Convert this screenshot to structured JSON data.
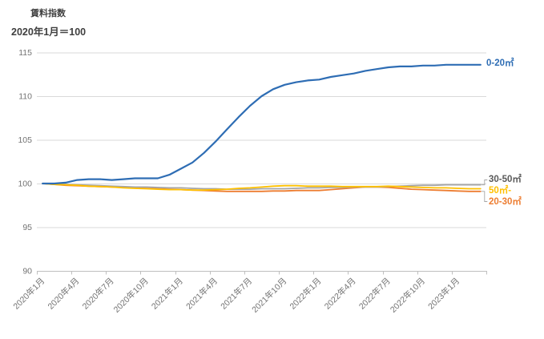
{
  "chart_data": {
    "type": "line",
    "title": "賃料指数",
    "subtitle": "2020年1月＝100",
    "ylim": [
      90,
      115
    ],
    "y_ticks": [
      90,
      95,
      100,
      105,
      110,
      115
    ],
    "grid": "horizontal-only",
    "legend_position": "end-of-line-labels",
    "x_tick_interval_months": 3,
    "x_tick_labels": [
      "2020年1月",
      "2020年4月",
      "2020年7月",
      "2020年10月",
      "2021年1月",
      "2021年4月",
      "2021年7月",
      "2021年10月",
      "2022年1月",
      "2022年4月",
      "2022年7月",
      "2022年10月",
      "2023年1月"
    ],
    "categories": [
      "2020年1月",
      "2020年2月",
      "2020年3月",
      "2020年4月",
      "2020年5月",
      "2020年6月",
      "2020年7月",
      "2020年8月",
      "2020年9月",
      "2020年10月",
      "2020年11月",
      "2020年12月",
      "2021年1月",
      "2021年2月",
      "2021年3月",
      "2021年4月",
      "2021年5月",
      "2021年6月",
      "2021年7月",
      "2021年8月",
      "2021年9月",
      "2021年10月",
      "2021年11月",
      "2021年12月",
      "2022年1月",
      "2022年2月",
      "2022年3月",
      "2022年4月",
      "2022年5月",
      "2022年6月",
      "2022年7月",
      "2022年8月",
      "2022年9月",
      "2022年10月",
      "2022年11月",
      "2022年12月",
      "2023年1月",
      "2023年2月",
      "2023年3月"
    ],
    "series": [
      {
        "name": "0-20㎡",
        "color": "#2E6DB4",
        "label_color": "#2E6DB4",
        "values": [
          100,
          100,
          100.1,
          100.4,
          100.5,
          100.5,
          100.4,
          100.5,
          100.6,
          100.6,
          100.6,
          101,
          101.7,
          102.4,
          103.5,
          104.8,
          106.2,
          107.6,
          108.9,
          110,
          110.8,
          111.3,
          111.6,
          111.8,
          111.9,
          112.2,
          112.4,
          112.6,
          112.9,
          113.1,
          113.3,
          113.4,
          113.4,
          113.5,
          113.5,
          113.6,
          113.6,
          113.6,
          113.6
        ]
      },
      {
        "name": "20-30㎡",
        "color": "#ED7D31",
        "label_color": "#ED7D31",
        "values": [
          100,
          99.9,
          99.8,
          99.75,
          99.7,
          99.65,
          99.6,
          99.55,
          99.5,
          99.45,
          99.4,
          99.35,
          99.3,
          99.25,
          99.2,
          99.15,
          99.1,
          99.1,
          99.1,
          99.1,
          99.15,
          99.15,
          99.2,
          99.2,
          99.2,
          99.3,
          99.4,
          99.5,
          99.6,
          99.6,
          99.55,
          99.45,
          99.35,
          99.3,
          99.25,
          99.2,
          99.15,
          99.1,
          99.1
        ]
      },
      {
        "name": "30-50㎡",
        "color": "#A5A5A5",
        "label_color": "#595959",
        "values": [
          100,
          99.95,
          99.9,
          99.85,
          99.8,
          99.75,
          99.7,
          99.65,
          99.6,
          99.6,
          99.55,
          99.5,
          99.5,
          99.45,
          99.4,
          99.4,
          99.35,
          99.35,
          99.35,
          99.4,
          99.4,
          99.4,
          99.45,
          99.5,
          99.5,
          99.55,
          99.55,
          99.6,
          99.6,
          99.6,
          99.65,
          99.7,
          99.75,
          99.8,
          99.8,
          99.85,
          99.85,
          99.85,
          99.85
        ]
      },
      {
        "name": "50㎡-",
        "color": "#FFC000",
        "label_color": "#FFC000",
        "values": [
          100,
          99.9,
          99.85,
          99.8,
          99.7,
          99.65,
          99.6,
          99.5,
          99.45,
          99.4,
          99.35,
          99.3,
          99.3,
          99.25,
          99.25,
          99.3,
          99.35,
          99.45,
          99.5,
          99.6,
          99.7,
          99.75,
          99.75,
          99.7,
          99.7,
          99.7,
          99.65,
          99.65,
          99.65,
          99.65,
          99.7,
          99.65,
          99.6,
          99.55,
          99.5,
          99.5,
          99.45,
          99.4,
          99.4
        ]
      }
    ],
    "axis_colors": {
      "tick_label": "#737373",
      "gridline": "#D9D9D9",
      "axis_line": "#BFBFBF",
      "leader_line": "#A5A5A5"
    }
  }
}
